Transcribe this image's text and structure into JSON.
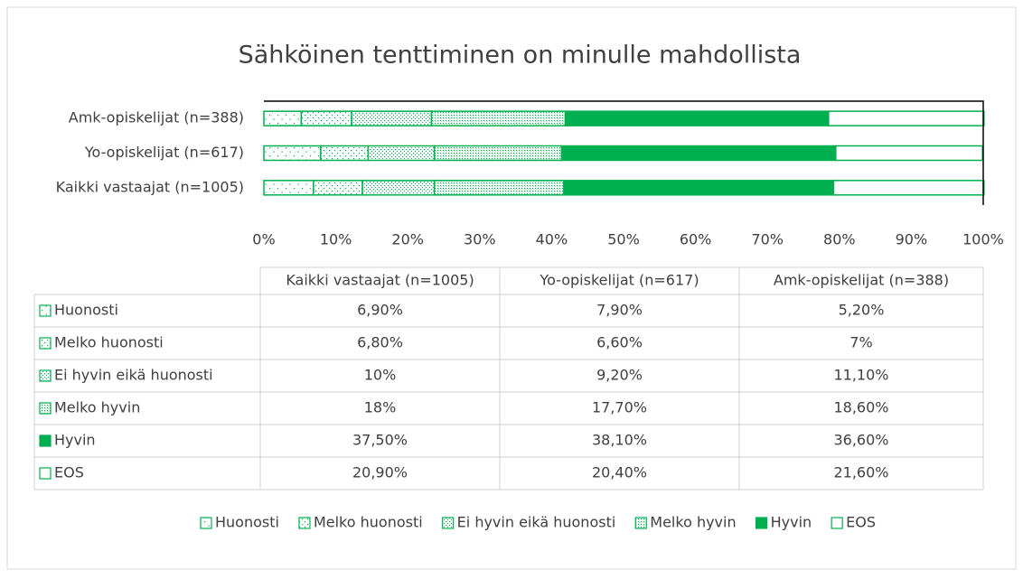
{
  "chart_data": {
    "type": "stacked_bar_horizontal",
    "title": "Sähköinen tenttiminen on minulle mahdollista",
    "categories": [
      "Kaikki vastaajat (n=1005)",
      "Yo-opiskelijat (n=617)",
      "Amk-opiskelijat (n=388)"
    ],
    "series": [
      {
        "name": "Huonosti",
        "color": "#00b050",
        "values": [
          6.9,
          7.9,
          5.2
        ],
        "value_labels": [
          "6,90%",
          "7,90%",
          "5,20%"
        ]
      },
      {
        "name": "Melko huonosti",
        "color": "#00b050",
        "values": [
          6.8,
          6.6,
          7
        ],
        "value_labels": [
          "6,80%",
          "6,60%",
          "7%"
        ]
      },
      {
        "name": "Ei hyvin eikä huonosti",
        "color": "#00b050",
        "values": [
          10,
          9.2,
          11.1
        ],
        "value_labels": [
          "10%",
          "9,20%",
          "11,10%"
        ]
      },
      {
        "name": "Melko hyvin",
        "color": "#00b050",
        "values": [
          18,
          17.7,
          18.6
        ],
        "value_labels": [
          "18%",
          "17,70%",
          "18,60%"
        ]
      },
      {
        "name": "Hyvin",
        "color": "#00b050",
        "values": [
          37.5,
          38.1,
          36.6
        ],
        "value_labels": [
          "37,50%",
          "38,10%",
          "36,60%"
        ]
      },
      {
        "name": "EOS",
        "color": "#00b050",
        "values": [
          20.9,
          20.4,
          21.6
        ],
        "value_labels": [
          "20,90%",
          "20,40%",
          "21,60%"
        ]
      }
    ],
    "xlim": [
      0,
      100
    ],
    "xticks": [
      {
        "value": 0,
        "label": "0%"
      },
      {
        "value": 10,
        "label": "10%"
      },
      {
        "value": 20,
        "label": "20%"
      },
      {
        "value": 30,
        "label": "30%"
      },
      {
        "value": 40,
        "label": "40%"
      },
      {
        "value": 50,
        "label": "50%"
      },
      {
        "value": 60,
        "label": "60%"
      },
      {
        "value": 70,
        "label": "70%"
      },
      {
        "value": 80,
        "label": "80%"
      },
      {
        "value": 90,
        "label": "90%"
      },
      {
        "value": 100,
        "label": "100%"
      }
    ],
    "legend": "bottom"
  }
}
